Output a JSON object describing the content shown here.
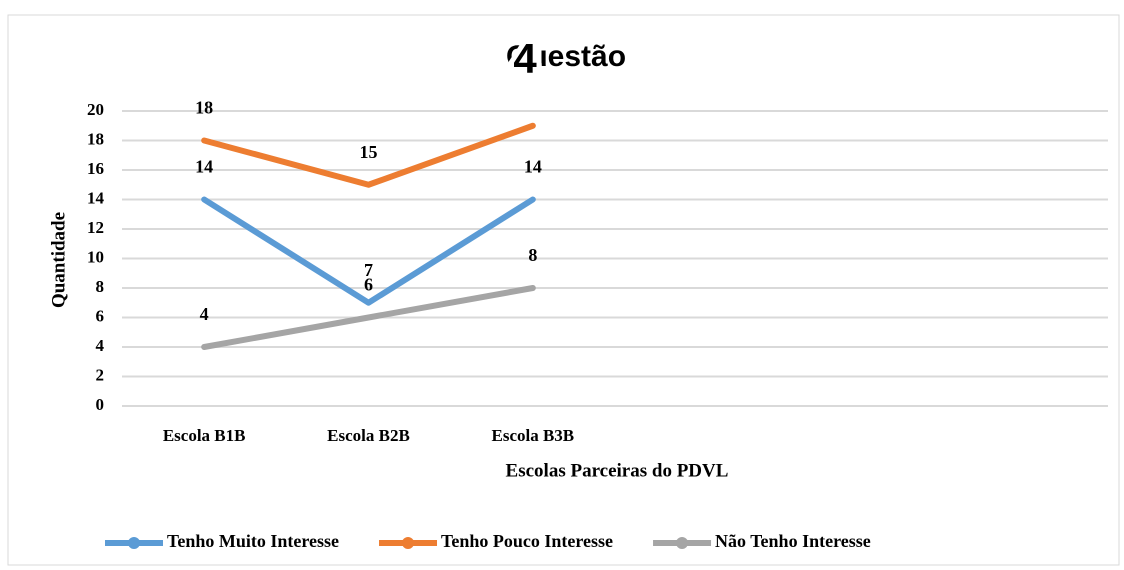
{
  "chart_data": {
    "type": "line",
    "title": "Questão",
    "annotations": [
      "4"
    ],
    "xlabel": "Escolas  Parceiras do PDVL",
    "ylabel": "Quantidade",
    "categories": [
      "Escola B1B",
      "Escola B2B",
      "Escola B3B",
      null,
      null,
      null
    ],
    "series": [
      {
        "name": "Tenho Muito Interesse",
        "color": "#5b9bd5",
        "values": [
          14,
          7,
          14,
          null,
          null,
          null
        ]
      },
      {
        "name": "Tenho Pouco Interesse",
        "color": "#ed7d31",
        "values": [
          18,
          15,
          19,
          null,
          null,
          null
        ],
        "value_labels": [
          "18",
          "15",
          null,
          null,
          null,
          null
        ]
      },
      {
        "name": "Não Tenho Interesse",
        "color": "#a5a5a5",
        "values": [
          4,
          6,
          8,
          null,
          null,
          null
        ]
      }
    ],
    "ylim": [
      0,
      20
    ],
    "yticks": [
      0,
      2,
      4,
      6,
      8,
      10,
      12,
      14,
      16,
      18,
      20
    ],
    "grid": true,
    "legend": "bottom"
  }
}
